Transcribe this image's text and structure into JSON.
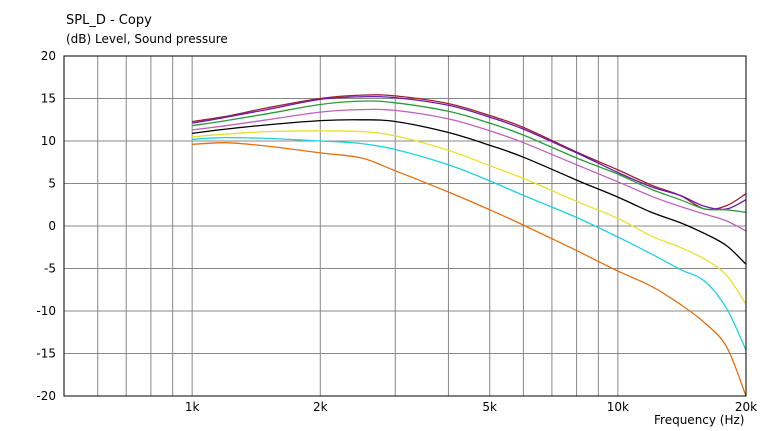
{
  "chart_data": {
    "type": "line",
    "title": "SPL_D - Copy",
    "ylabel": "(dB)  Level, Sound pressure",
    "xlabel": "Frequency  (Hz)",
    "x_scale": "log",
    "xlim": [
      500,
      20000
    ],
    "ylim": [
      -20,
      20
    ],
    "x_ticks": [
      {
        "value": 1000,
        "label": "1k"
      },
      {
        "value": 2000,
        "label": "2k"
      },
      {
        "value": 5000,
        "label": "5k"
      },
      {
        "value": 10000,
        "label": "10k"
      },
      {
        "value": 20000,
        "label": "20k"
      }
    ],
    "y_ticks": [
      20,
      15,
      10,
      5,
      0,
      -5,
      -10,
      -15,
      -20
    ],
    "grid": true,
    "x": [
      1000,
      1200,
      1500,
      2000,
      2500,
      3000,
      4000,
      5000,
      6000,
      8000,
      10000,
      12000,
      14000,
      16000,
      18000,
      20000
    ],
    "series": [
      {
        "color": "#a02030",
        "values": [
          12.3,
          12.9,
          13.9,
          15.0,
          15.4,
          15.3,
          14.4,
          13.0,
          11.6,
          8.7,
          6.6,
          4.8,
          3.6,
          2.0,
          2.4,
          3.8
        ]
      },
      {
        "color": "#6a1aa8",
        "values": [
          12.1,
          12.8,
          13.7,
          14.9,
          15.2,
          15.1,
          14.2,
          12.8,
          11.4,
          8.6,
          6.3,
          4.6,
          3.6,
          2.3,
          2.0,
          3.1
        ]
      },
      {
        "color": "#2a9a3a",
        "values": [
          11.8,
          12.4,
          13.2,
          14.3,
          14.7,
          14.5,
          13.5,
          12.1,
          10.7,
          8.0,
          6.1,
          4.3,
          3.1,
          2.0,
          1.9,
          1.6
        ]
      },
      {
        "color": "#c060c0",
        "values": [
          11.3,
          11.8,
          12.5,
          13.4,
          13.7,
          13.6,
          12.6,
          11.2,
          9.8,
          7.2,
          5.2,
          3.5,
          2.3,
          1.4,
          0.6,
          -0.6
        ]
      },
      {
        "color": "#000000",
        "values": [
          10.9,
          11.4,
          11.9,
          12.4,
          12.5,
          12.3,
          11.0,
          9.5,
          8.1,
          5.4,
          3.4,
          1.6,
          0.4,
          -0.9,
          -2.3,
          -4.5
        ]
      },
      {
        "color": "#e8e030",
        "values": [
          10.5,
          10.8,
          11.1,
          11.2,
          11.1,
          10.6,
          8.9,
          7.1,
          5.6,
          2.9,
          0.9,
          -1.2,
          -2.5,
          -3.9,
          -5.8,
          -9.2
        ]
      },
      {
        "color": "#20d0e0",
        "values": [
          10.2,
          10.4,
          10.3,
          10.0,
          9.7,
          9.0,
          7.2,
          5.3,
          3.6,
          1.0,
          -1.3,
          -3.3,
          -5.1,
          -6.5,
          -9.7,
          -14.6
        ]
      },
      {
        "color": "#e07010",
        "values": [
          9.6,
          9.8,
          9.4,
          8.6,
          8.0,
          6.5,
          4.0,
          1.9,
          0.1,
          -2.9,
          -5.3,
          -7.1,
          -9.2,
          -11.4,
          -14.2,
          -20.0
        ]
      }
    ]
  }
}
